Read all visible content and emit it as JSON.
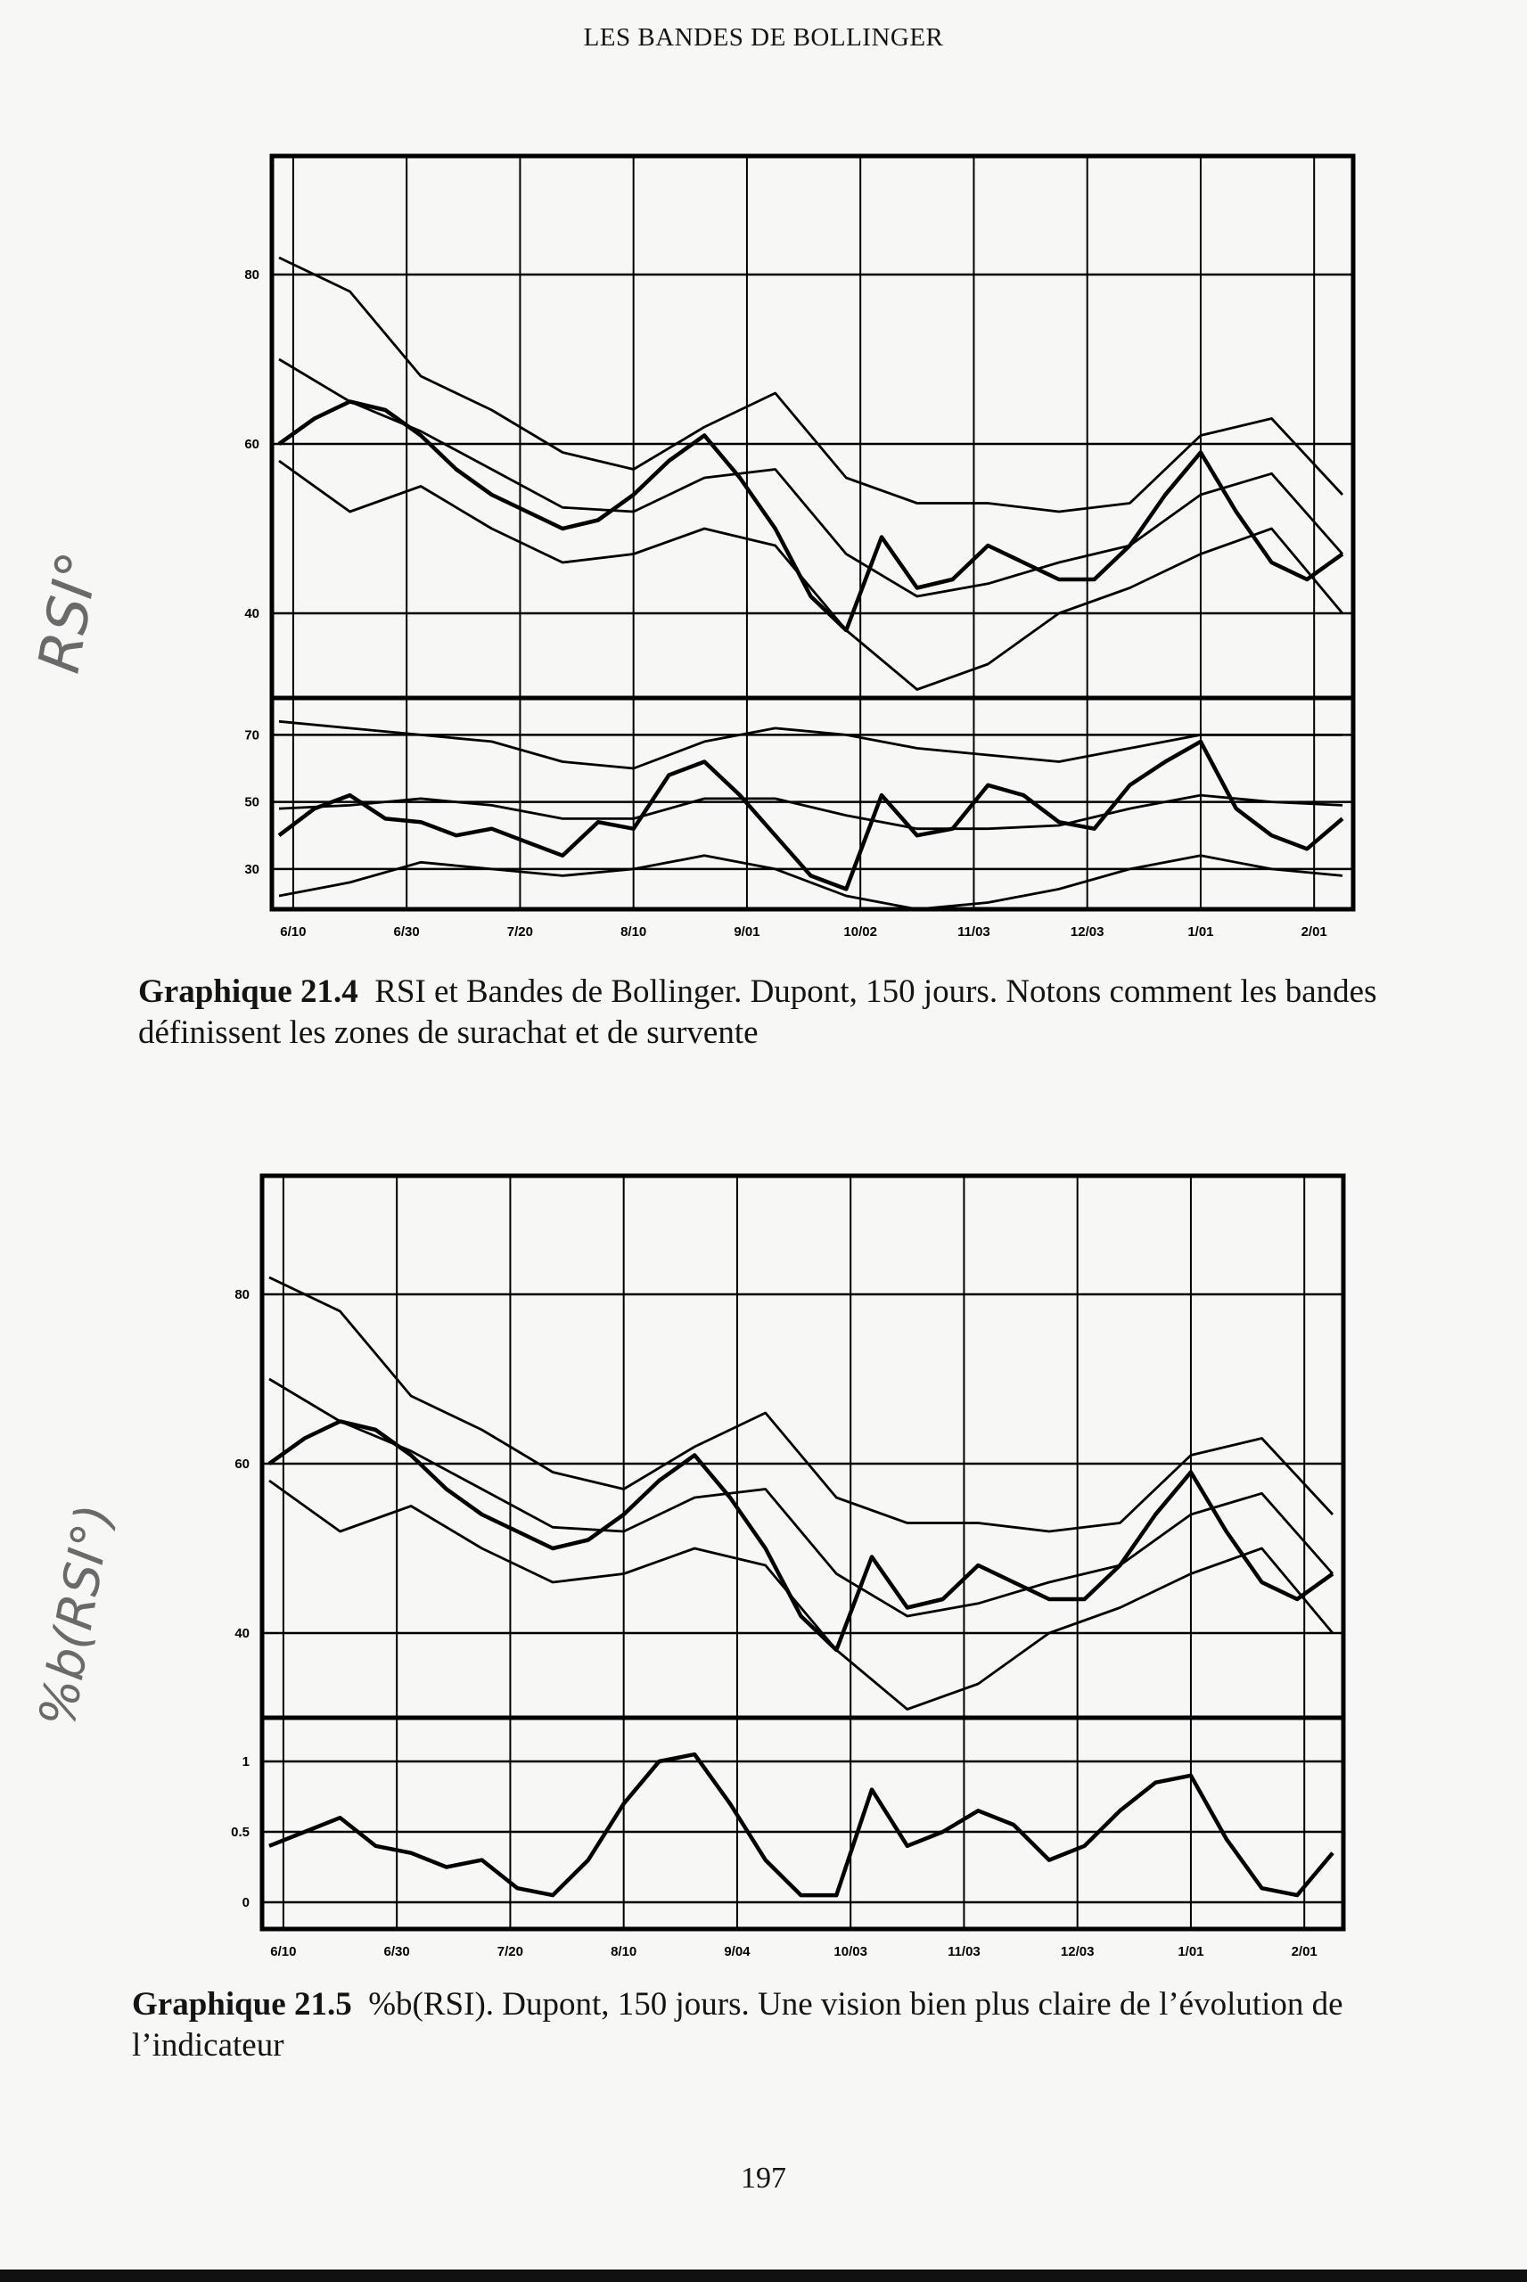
{
  "page": {
    "running_head": "LES BANDES DE BOLLINGER",
    "page_number": "197",
    "handwritten_notes": [
      "RSI°",
      "%b(RSI°)"
    ]
  },
  "captions": [
    {
      "label": "Graphique 21.4",
      "text": "RSI et Bandes de Bollinger. Dupont, 150 jours. Notons comment les bandes définissent les zones de surachat et de survente"
    },
    {
      "label": "Graphique 21.5",
      "text": "%b(RSI). Dupont, 150 jours. Une vision bien plus claire de l’évolution de l’indicateur"
    }
  ],
  "chart_data": [
    {
      "type": "line",
      "title": "",
      "grid": true,
      "x_tick_labels": [
        "6/10",
        "6/30",
        "7/20",
        "8/10",
        "9/01",
        "10/02",
        "11/03",
        "12/03",
        "1/01",
        "2/01"
      ],
      "panels": [
        {
          "name": "price",
          "ylim": [
            30,
            94
          ],
          "y_ticks": [
            80,
            60,
            40
          ],
          "series": [
            {
              "role": "price",
              "x": [
                0,
                5,
                10,
                15,
                20,
                25,
                30,
                35,
                40,
                45,
                50,
                55,
                60,
                65,
                70,
                75,
                80,
                85,
                90,
                95,
                100,
                105,
                110,
                115,
                120,
                125,
                130,
                135,
                140,
                145,
                150
              ],
              "y": [
                60,
                63,
                65,
                64,
                61,
                57,
                54,
                52,
                50,
                51,
                54,
                58,
                61,
                56,
                50,
                42,
                38,
                49,
                43,
                44,
                48,
                46,
                44,
                44,
                48,
                54,
                59,
                52,
                46,
                44,
                47
              ]
            },
            {
              "role": "upper-band",
              "x": [
                0,
                10,
                20,
                30,
                40,
                50,
                60,
                70,
                80,
                90,
                100,
                110,
                120,
                130,
                140,
                150
              ],
              "y": [
                82,
                78,
                68,
                64,
                59,
                57,
                62,
                66,
                56,
                53,
                53,
                52,
                53,
                61,
                63,
                54
              ]
            },
            {
              "role": "middle-band",
              "x": [
                0,
                10,
                20,
                30,
                40,
                50,
                60,
                70,
                80,
                90,
                100,
                110,
                120,
                130,
                140,
                150
              ],
              "y": [
                70,
                65,
                61.5,
                57,
                52.5,
                52,
                56,
                57,
                47,
                42,
                43.5,
                46,
                48,
                54,
                56.5,
                47
              ]
            },
            {
              "role": "lower-band",
              "x": [
                0,
                10,
                20,
                30,
                40,
                50,
                60,
                70,
                80,
                90,
                100,
                110,
                120,
                130,
                140,
                150
              ],
              "y": [
                58,
                52,
                55,
                50,
                46,
                47,
                50,
                48,
                38,
                31,
                34,
                40,
                43,
                47,
                50,
                40
              ]
            }
          ]
        },
        {
          "name": "rsi",
          "ylim": [
            18,
            81
          ],
          "y_ticks": [
            70,
            50,
            30
          ],
          "series": [
            {
              "role": "rsi",
              "x": [
                0,
                5,
                10,
                15,
                20,
                25,
                30,
                35,
                40,
                45,
                50,
                55,
                60,
                65,
                70,
                75,
                80,
                85,
                90,
                95,
                100,
                105,
                110,
                115,
                120,
                125,
                130,
                135,
                140,
                145,
                150
              ],
              "y": [
                40,
                48,
                52,
                45,
                44,
                40,
                42,
                38,
                34,
                44,
                42,
                58,
                62,
                52,
                40,
                28,
                24,
                52,
                40,
                42,
                55,
                52,
                44,
                42,
                55,
                62,
                68,
                48,
                40,
                36,
                45
              ]
            },
            {
              "role": "upper-band",
              "x": [
                0,
                10,
                20,
                30,
                40,
                50,
                60,
                70,
                80,
                90,
                100,
                110,
                120,
                130,
                140,
                150
              ],
              "y": [
                74,
                72,
                70,
                68,
                62,
                60,
                68,
                72,
                70,
                66,
                64,
                62,
                66,
                70,
                70,
                70
              ]
            },
            {
              "role": "middle-band",
              "x": [
                0,
                10,
                20,
                30,
                40,
                50,
                60,
                70,
                80,
                90,
                100,
                110,
                120,
                130,
                140,
                150
              ],
              "y": [
                48,
                49,
                51,
                49,
                45,
                45,
                51,
                51,
                46,
                42,
                42,
                43,
                48,
                52,
                50,
                49
              ]
            },
            {
              "role": "lower-band",
              "x": [
                0,
                10,
                20,
                30,
                40,
                50,
                60,
                70,
                80,
                90,
                100,
                110,
                120,
                130,
                140,
                150
              ],
              "y": [
                22,
                26,
                32,
                30,
                28,
                30,
                34,
                30,
                22,
                18,
                20,
                24,
                30,
                34,
                30,
                28
              ]
            }
          ]
        }
      ]
    },
    {
      "type": "line",
      "title": "",
      "grid": true,
      "x_tick_labels": [
        "6/10",
        "6/30",
        "7/20",
        "8/10",
        "9/04",
        "10/03",
        "11/03",
        "12/03",
        "1/01",
        "2/01"
      ],
      "panels": [
        {
          "name": "price",
          "ylim": [
            30,
            94
          ],
          "y_ticks": [
            80,
            60,
            40
          ],
          "series": [
            {
              "role": "price",
              "x": [
                0,
                5,
                10,
                15,
                20,
                25,
                30,
                35,
                40,
                45,
                50,
                55,
                60,
                65,
                70,
                75,
                80,
                85,
                90,
                95,
                100,
                105,
                110,
                115,
                120,
                125,
                130,
                135,
                140,
                145,
                150
              ],
              "y": [
                60,
                63,
                65,
                64,
                61,
                57,
                54,
                52,
                50,
                51,
                54,
                58,
                61,
                56,
                50,
                42,
                38,
                49,
                43,
                44,
                48,
                46,
                44,
                44,
                48,
                54,
                59,
                52,
                46,
                44,
                47
              ]
            },
            {
              "role": "upper-band",
              "x": [
                0,
                10,
                20,
                30,
                40,
                50,
                60,
                70,
                80,
                90,
                100,
                110,
                120,
                130,
                140,
                150
              ],
              "y": [
                82,
                78,
                68,
                64,
                59,
                57,
                62,
                66,
                56,
                53,
                53,
                52,
                53,
                61,
                63,
                54
              ]
            },
            {
              "role": "middle-band",
              "x": [
                0,
                10,
                20,
                30,
                40,
                50,
                60,
                70,
                80,
                90,
                100,
                110,
                120,
                130,
                140,
                150
              ],
              "y": [
                70,
                65,
                61.5,
                57,
                52.5,
                52,
                56,
                57,
                47,
                42,
                43.5,
                46,
                48,
                54,
                56.5,
                47
              ]
            },
            {
              "role": "lower-band",
              "x": [
                0,
                10,
                20,
                30,
                40,
                50,
                60,
                70,
                80,
                90,
                100,
                110,
                120,
                130,
                140,
                150
              ],
              "y": [
                58,
                52,
                55,
                50,
                46,
                47,
                50,
                48,
                38,
                31,
                34,
                40,
                43,
                47,
                50,
                40
              ]
            }
          ]
        },
        {
          "name": "percent-b-rsi",
          "ylim": [
            -0.19,
            1.31
          ],
          "y_ticks": [
            1,
            0.5,
            0
          ],
          "series": [
            {
              "role": "percent-b",
              "x": [
                0,
                5,
                10,
                15,
                20,
                25,
                30,
                35,
                40,
                45,
                50,
                55,
                60,
                65,
                70,
                75,
                80,
                85,
                90,
                95,
                100,
                105,
                110,
                115,
                120,
                125,
                130,
                135,
                140,
                145,
                150
              ],
              "y": [
                0.4,
                0.5,
                0.6,
                0.4,
                0.35,
                0.25,
                0.3,
                0.1,
                0.05,
                0.3,
                0.7,
                1.0,
                1.05,
                0.7,
                0.3,
                0.05,
                0.05,
                0.8,
                0.4,
                0.5,
                0.65,
                0.55,
                0.3,
                0.4,
                0.65,
                0.85,
                0.9,
                0.45,
                0.1,
                0.05,
                0.35
              ]
            }
          ]
        }
      ]
    }
  ]
}
